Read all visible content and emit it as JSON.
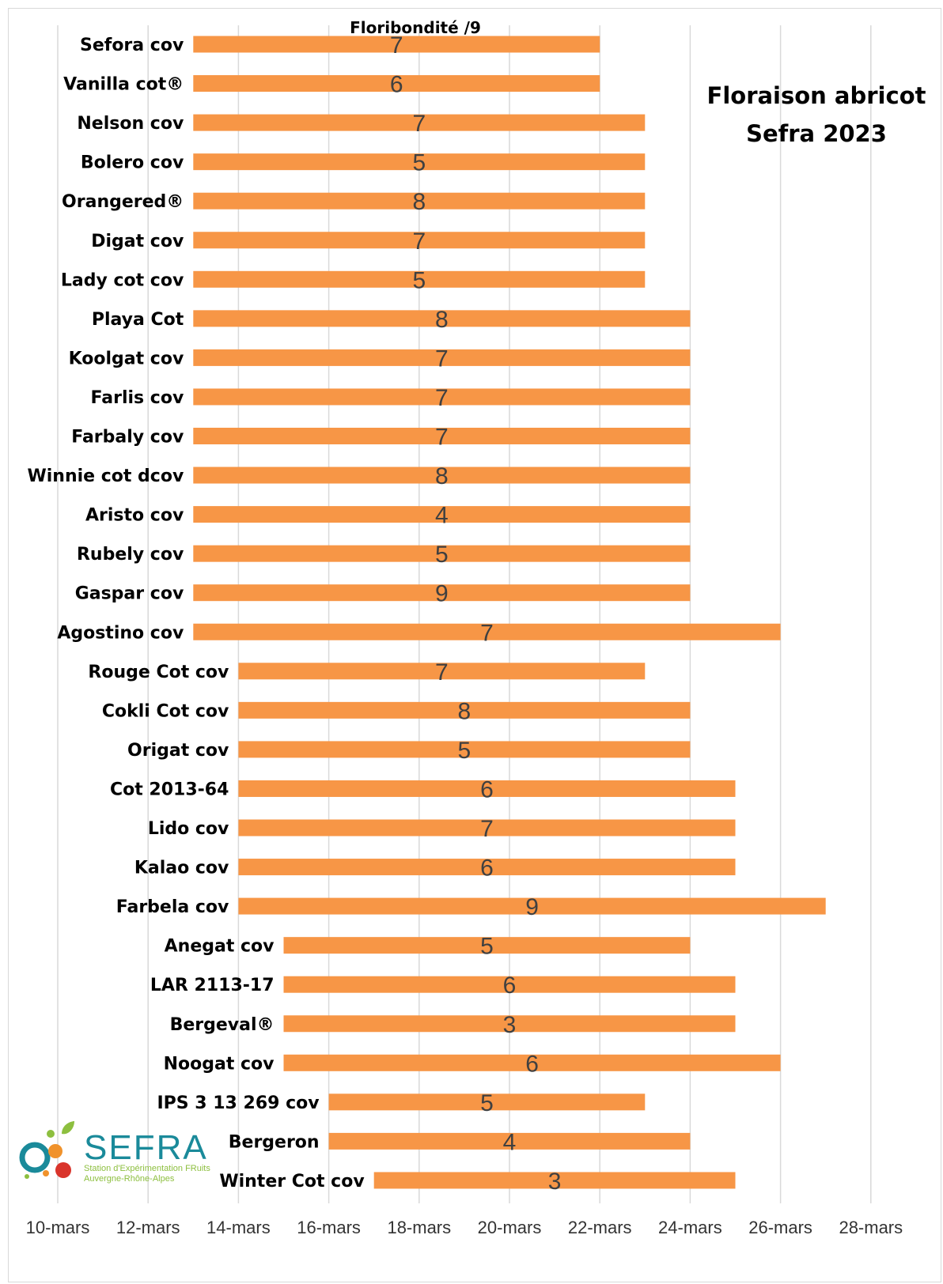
{
  "chart_data": {
    "type": "bar",
    "orientation": "horizontal",
    "title": "Floraison abricot",
    "subtitle": "Sefra 2023",
    "top_label": "Floribondité /9",
    "bar_color": "#F79646",
    "grid": true,
    "x_range_days": [
      10,
      28
    ],
    "x_ticks": [
      "10-mars",
      "12-mars",
      "14-mars",
      "16-mars",
      "18-mars",
      "20-mars",
      "22-mars",
      "24-mars",
      "26-mars",
      "28-mars"
    ],
    "x_tick_days": [
      10,
      12,
      14,
      16,
      18,
      20,
      22,
      24,
      26,
      28
    ],
    "bars": [
      {
        "name": "Sefora cov",
        "start": "13-mars",
        "end": "22-mars",
        "start_day": 13,
        "end_day": 22,
        "label": "7"
      },
      {
        "name": "Vanilla cot®",
        "start": "13-mars",
        "end": "22-mars",
        "start_day": 13,
        "end_day": 22,
        "label": "6"
      },
      {
        "name": "Nelson cov",
        "start": "13-mars",
        "end": "23-mars",
        "start_day": 13,
        "end_day": 23,
        "label": "7"
      },
      {
        "name": "Bolero cov",
        "start": "13-mars",
        "end": "23-mars",
        "start_day": 13,
        "end_day": 23,
        "label": "5"
      },
      {
        "name": "Orangered®",
        "start": "13-mars",
        "end": "23-mars",
        "start_day": 13,
        "end_day": 23,
        "label": "8"
      },
      {
        "name": "Digat cov",
        "start": "13-mars",
        "end": "23-mars",
        "start_day": 13,
        "end_day": 23,
        "label": "7"
      },
      {
        "name": "Lady cot cov",
        "start": "13-mars",
        "end": "23-mars",
        "start_day": 13,
        "end_day": 23,
        "label": "5"
      },
      {
        "name": "Playa Cot",
        "start": "13-mars",
        "end": "24-mars",
        "start_day": 13,
        "end_day": 24,
        "label": "8"
      },
      {
        "name": "Koolgat cov",
        "start": "13-mars",
        "end": "24-mars",
        "start_day": 13,
        "end_day": 24,
        "label": "7"
      },
      {
        "name": "Farlis cov",
        "start": "13-mars",
        "end": "24-mars",
        "start_day": 13,
        "end_day": 24,
        "label": "7"
      },
      {
        "name": "Farbaly cov",
        "start": "13-mars",
        "end": "24-mars",
        "start_day": 13,
        "end_day": 24,
        "label": "7"
      },
      {
        "name": "Winnie cot dcov",
        "start": "13-mars",
        "end": "24-mars",
        "start_day": 13,
        "end_day": 24,
        "label": "8"
      },
      {
        "name": "Aristo cov",
        "start": "13-mars",
        "end": "24-mars",
        "start_day": 13,
        "end_day": 24,
        "label": "4"
      },
      {
        "name": "Rubely cov",
        "start": "13-mars",
        "end": "24-mars",
        "start_day": 13,
        "end_day": 24,
        "label": "5"
      },
      {
        "name": "Gaspar cov",
        "start": "13-mars",
        "end": "24-mars",
        "start_day": 13,
        "end_day": 24,
        "label": "9"
      },
      {
        "name": "Agostino cov",
        "start": "13-mars",
        "end": "26-mars",
        "start_day": 13,
        "end_day": 26,
        "label": "7"
      },
      {
        "name": "Rouge Cot cov",
        "start": "14-mars",
        "end": "23-mars",
        "start_day": 14,
        "end_day": 23,
        "label": "7"
      },
      {
        "name": "Cokli Cot cov",
        "start": "14-mars",
        "end": "24-mars",
        "start_day": 14,
        "end_day": 24,
        "label": "8"
      },
      {
        "name": "Origat  cov",
        "start": "14-mars",
        "end": "24-mars",
        "start_day": 14,
        "end_day": 24,
        "label": "5"
      },
      {
        "name": "Cot 2013-64",
        "start": "14-mars",
        "end": "25-mars",
        "start_day": 14,
        "end_day": 25,
        "label": "6"
      },
      {
        "name": "Lido cov",
        "start": "14-mars",
        "end": "25-mars",
        "start_day": 14,
        "end_day": 25,
        "label": "7"
      },
      {
        "name": "Kalao cov",
        "start": "14-mars",
        "end": "25-mars",
        "start_day": 14,
        "end_day": 25,
        "label": "6"
      },
      {
        "name": "Farbela cov",
        "start": "14-mars",
        "end": "27-mars",
        "start_day": 14,
        "end_day": 27,
        "label": "9"
      },
      {
        "name": "Anegat cov",
        "start": "15-mars",
        "end": "24-mars",
        "start_day": 15,
        "end_day": 24,
        "label": "5"
      },
      {
        "name": "LAR 2113-17",
        "start": "15-mars",
        "end": "25-mars",
        "start_day": 15,
        "end_day": 25,
        "label": "6"
      },
      {
        "name": "Bergeval®",
        "start": "15-mars",
        "end": "25-mars",
        "start_day": 15,
        "end_day": 25,
        "label": "3"
      },
      {
        "name": "Noogat cov",
        "start": "15-mars",
        "end": "26-mars",
        "start_day": 15,
        "end_day": 26,
        "label": "6"
      },
      {
        "name": "IPS 3 13 269 cov",
        "start": "16-mars",
        "end": "23-mars",
        "start_day": 16,
        "end_day": 23,
        "label": "5"
      },
      {
        "name": "Bergeron",
        "start": "16-mars",
        "end": "24-mars",
        "start_day": 16,
        "end_day": 24,
        "label": "4"
      },
      {
        "name": "Winter Cot cov",
        "start": "17-mars",
        "end": "25-mars",
        "start_day": 17,
        "end_day": 25,
        "label": "3"
      }
    ]
  },
  "logo": {
    "name": "SEFRA",
    "tagline_1": "Station d'Expérimentation FRuits",
    "tagline_2": "Auvergne-Rhône-Alpes",
    "colors": {
      "teal": "#1a8a9a",
      "green": "#8dbf3f",
      "orange": "#f0922b",
      "red": "#d9342b"
    }
  }
}
